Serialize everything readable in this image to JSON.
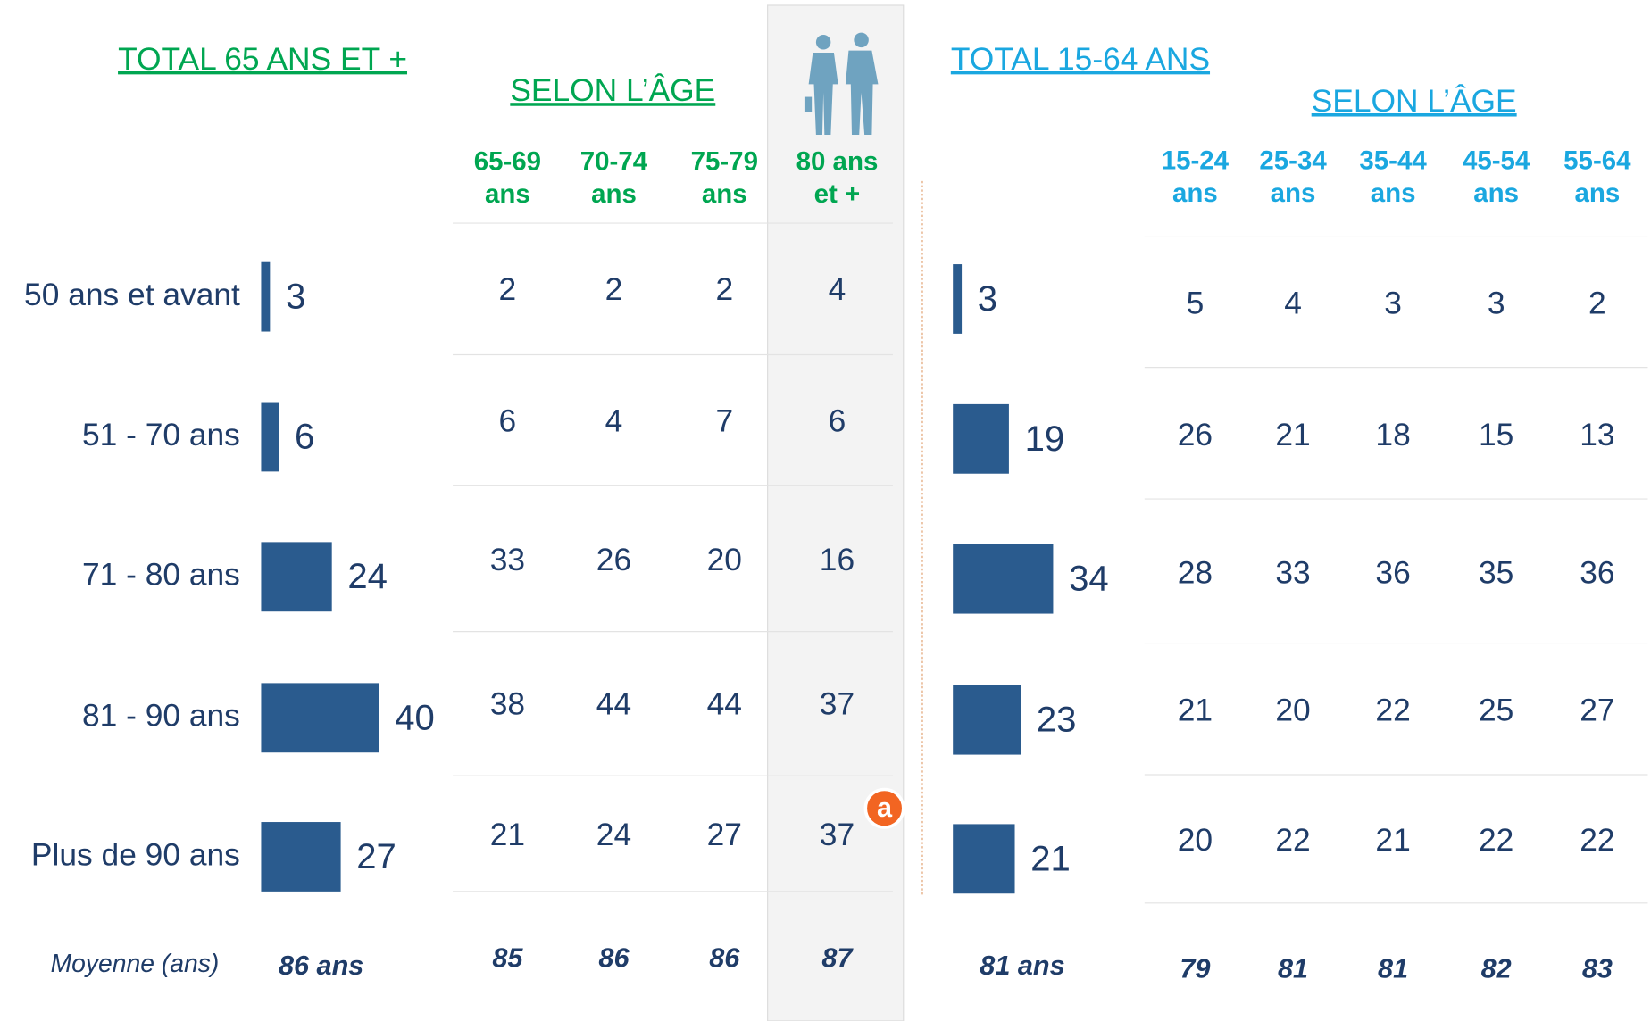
{
  "row_labels": [
    "50 ans et avant",
    "51 - 70 ans",
    "71 - 80 ans",
    "81 - 90 ans",
    "Plus de 90 ans"
  ],
  "mean_label": "Moyenne (ans)",
  "marker": "a",
  "bar_color": "#2a5b8e",
  "panels": [
    {
      "title": "TOTAL 65 ANS ET +",
      "subtitle": "SELON L’ÂGE",
      "accent": "#00a651",
      "total_values": [
        3,
        6,
        24,
        40,
        27
      ],
      "total_mean": "86 ans",
      "columns": [
        {
          "header": [
            "65-69",
            "ans"
          ],
          "values": [
            2,
            6,
            33,
            38,
            21
          ],
          "mean": 85
        },
        {
          "header": [
            "70-74",
            "ans"
          ],
          "values": [
            2,
            4,
            26,
            44,
            24
          ],
          "mean": 86
        },
        {
          "header": [
            "75-79",
            "ans"
          ],
          "values": [
            2,
            7,
            20,
            44,
            27
          ],
          "mean": 86
        },
        {
          "header": [
            "80 ans",
            "et +"
          ],
          "values": [
            4,
            6,
            16,
            37,
            37
          ],
          "mean": 87
        }
      ]
    },
    {
      "title": "TOTAL 15-64 ANS",
      "subtitle": "SELON L’ÂGE",
      "accent": "#1aa7e0",
      "total_values": [
        3,
        19,
        34,
        23,
        21
      ],
      "total_mean": "81 ans",
      "columns": [
        {
          "header": [
            "15-24",
            "ans"
          ],
          "values": [
            5,
            26,
            28,
            21,
            20
          ],
          "mean": 79
        },
        {
          "header": [
            "25-34",
            "ans"
          ],
          "values": [
            4,
            21,
            33,
            20,
            22
          ],
          "mean": 81
        },
        {
          "header": [
            "35-44",
            "ans"
          ],
          "values": [
            3,
            18,
            36,
            22,
            21
          ],
          "mean": 81
        },
        {
          "header": [
            "45-54",
            "ans"
          ],
          "values": [
            3,
            15,
            35,
            25,
            22
          ],
          "mean": 82
        },
        {
          "header": [
            "55-64",
            "ans"
          ],
          "values": [
            2,
            13,
            36,
            27,
            22
          ],
          "mean": 83
        }
      ]
    }
  ]
}
